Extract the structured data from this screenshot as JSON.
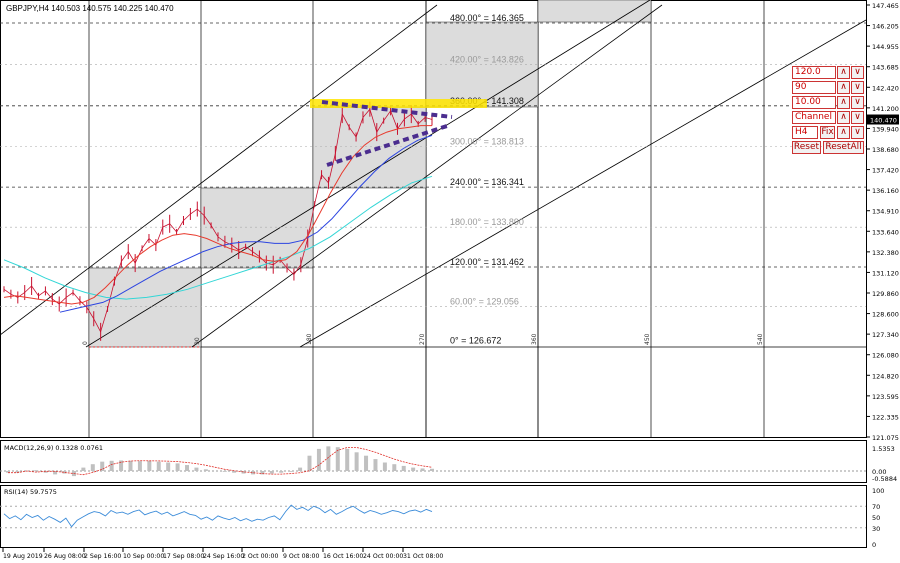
{
  "main": {
    "title": "GBPJPY,H4  140.503 140.575 140.225 140.470",
    "current_price": "140.470"
  },
  "chart_data": {
    "type": "line",
    "symbol": "GBPJPY",
    "timeframe": "H4",
    "ohlc": {
      "open": 140.503,
      "high": 140.575,
      "low": 140.225,
      "close": 140.47
    },
    "price_axis": [
      "147.465",
      "146.205",
      "144.955",
      "143.685",
      "142.420",
      "141.200",
      "139.940",
      "138.680",
      "137.420",
      "136.160",
      "134.910",
      "133.640",
      "132.380",
      "131.120",
      "129.860",
      "128.600",
      "127.340",
      "126.080",
      "124.820",
      "123.595",
      "122.335",
      "121.075"
    ],
    "time_axis": [
      "19 Aug 2019",
      "26 Aug 08:00",
      "2 Sep 16:00",
      "10 Sep 00:00",
      "17 Sep 08:00",
      "24 Sep 16:00",
      "2 Oct 00:00",
      "9 Oct 08:00",
      "16 Oct 16:00",
      "24 Oct 00:00",
      "31 Oct 08:00"
    ],
    "gann_levels": [
      {
        "label": "480.00° = 146.365",
        "price": 146.365,
        "faded": false
      },
      {
        "label": "420.00° = 143.826",
        "price": 143.826,
        "faded": true
      },
      {
        "label": "360.00° = 141.308",
        "price": 141.308,
        "faded": false
      },
      {
        "label": "300.00° = 138.813",
        "price": 138.813,
        "faded": true
      },
      {
        "label": "240.00° = 136.341",
        "price": 136.341,
        "faded": false
      },
      {
        "label": "180.00° = 133.890",
        "price": 133.89,
        "faded": true
      },
      {
        "label": "120.00° = 131.462",
        "price": 131.462,
        "faded": false
      },
      {
        "label": "60.00° = 129.056",
        "price": 129.056,
        "faded": true
      },
      {
        "label": "0° = 126.672",
        "price": 126.672,
        "faded": false
      }
    ],
    "degree_marks": [
      "0",
      "90",
      "180",
      "270",
      "360",
      "450",
      "540"
    ],
    "close_series": [
      130.1,
      129.8,
      129.6,
      129.9,
      130.3,
      129.7,
      130.0,
      129.5,
      129.2,
      129.6,
      129.9,
      129.4,
      129.0,
      128.3,
      127.5,
      128.9,
      130.6,
      131.8,
      132.4,
      131.7,
      132.6,
      133.2,
      132.8,
      133.9,
      134.1,
      133.6,
      134.3,
      134.7,
      135.0,
      134.6,
      134.0,
      133.3,
      133.0,
      132.8,
      132.5,
      132.7,
      132.4,
      132.1,
      131.7,
      131.6,
      131.9,
      131.4,
      131.0,
      131.6,
      133.2,
      135.3,
      137.1,
      136.6,
      138.4,
      140.8,
      140.0,
      139.4,
      140.6,
      141.1,
      139.7,
      140.4,
      141.0,
      139.9,
      140.5,
      140.8,
      140.2,
      140.6,
      140.47
    ],
    "ma_red": [
      129.6,
      129.7,
      129.6,
      129.5,
      129.4,
      129.3,
      129.2,
      129.3,
      129.6,
      130.2,
      130.9,
      131.6,
      132.2,
      132.7,
      133.1,
      133.4,
      133.5,
      133.4,
      133.2,
      132.9,
      132.6,
      132.4,
      132.2,
      131.9,
      131.8,
      131.9,
      132.4,
      133.4,
      134.7,
      136.0,
      137.2,
      138.2,
      138.9,
      139.4,
      139.7,
      139.9,
      140.0,
      140.1,
      140.1
    ],
    "ma_blue": [
      128.7,
      128.9,
      129.1,
      129.3,
      129.7,
      130.2,
      130.7,
      131.2,
      131.6,
      132.0,
      132.4,
      132.7,
      132.9,
      133.0,
      133.0,
      132.9,
      132.9,
      133.1,
      133.6,
      134.4,
      135.4,
      136.4,
      137.3,
      138.1,
      138.7,
      139.2,
      139.5
    ],
    "ma_cyan": [
      131.9,
      131.4,
      130.8,
      130.3,
      129.9,
      129.6,
      129.5,
      129.6,
      129.8,
      130.1,
      130.5,
      130.9,
      131.3,
      131.7,
      132.1,
      132.6,
      133.3,
      134.2,
      135.1,
      135.9,
      136.6,
      137.0
    ],
    "macd": {
      "label": "MACD(12,26,9) 0.1328 0.0761",
      "axis": [
        "1.5353",
        "0.00",
        "-0.5884"
      ]
    },
    "rsi": {
      "label": "RSI(14) 59.7575",
      "axis": [
        "100",
        "70",
        "50",
        "30",
        "0"
      ],
      "values": [
        56,
        47,
        52,
        45,
        55,
        49,
        53,
        44,
        51,
        46,
        40,
        48,
        32,
        44,
        50,
        56,
        60,
        58,
        52,
        62,
        57,
        59,
        55,
        60,
        63,
        54,
        58,
        61,
        55,
        59,
        52,
        56,
        60,
        55,
        53,
        46,
        50,
        44,
        52,
        48,
        45,
        49,
        43,
        47,
        42,
        46,
        44,
        49,
        52,
        45,
        60,
        72,
        64,
        68,
        62,
        70,
        66,
        58,
        64,
        55,
        60,
        66,
        70,
        63,
        57,
        62,
        59,
        55,
        58,
        62,
        60,
        56,
        61,
        63,
        59,
        64,
        60
      ]
    }
  },
  "controls": {
    "price_step": "120.0",
    "degree": "90",
    "scale": "10.00",
    "mode": "Channel",
    "tf": "H4",
    "fix": "Fix",
    "reset": "Reset",
    "reset_all": "ResetAll",
    "up_glyph": "∧",
    "down_glyph": "∨"
  },
  "colors": {
    "price_bar": "#c8102e",
    "ma_red": "#e8392c",
    "ma_blue": "#2b44e0",
    "ma_cyan": "#33d6d6",
    "box_fill": "#dcdcdc",
    "highlight": "#ffe500",
    "dash_purple": "#4b2d8f",
    "rsi_line": "#3c8cd9",
    "macd_bar": "#c0c0c0",
    "macd_signal": "#e0302a"
  }
}
